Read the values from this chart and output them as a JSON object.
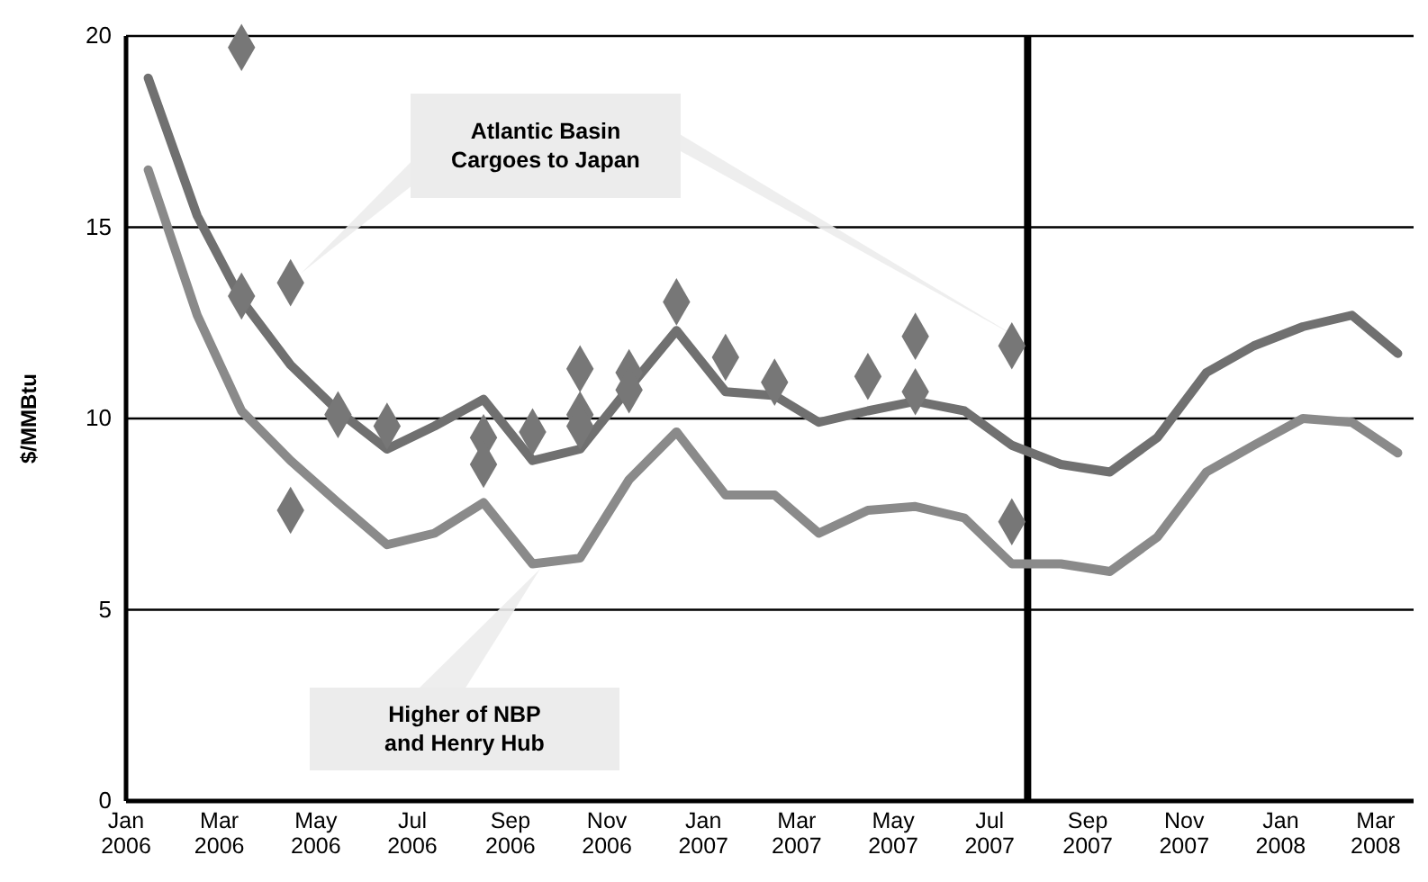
{
  "chart_data": {
    "type": "line",
    "ylabel": "$/MMBtu",
    "xlim": [
      "2006-01-01",
      "2008-03-25"
    ],
    "ylim": [
      0,
      20
    ],
    "yticks": [
      0,
      5,
      10,
      15,
      20
    ],
    "xticks": [
      {
        "value": "2006-01-01",
        "label": "Jan 2006"
      },
      {
        "value": "2006-03-01",
        "label": "Mar 2006"
      },
      {
        "value": "2006-05-01",
        "label": "May 2006"
      },
      {
        "value": "2006-07-01",
        "label": "Jul 2006"
      },
      {
        "value": "2006-09-01",
        "label": "Sep 2006"
      },
      {
        "value": "2006-11-01",
        "label": "Nov 2006"
      },
      {
        "value": "2007-01-01",
        "label": "Jan 2007"
      },
      {
        "value": "2007-03-01",
        "label": "Mar 2007"
      },
      {
        "value": "2007-05-01",
        "label": "May 2007"
      },
      {
        "value": "2007-07-01",
        "label": "Jul 2007"
      },
      {
        "value": "2007-09-01",
        "label": "Sep 2007"
      },
      {
        "value": "2007-11-01",
        "label": "Nov 2007"
      },
      {
        "value": "2008-01-01",
        "label": "Jan 2008"
      },
      {
        "value": "2008-03-01",
        "label": "Mar 2008"
      }
    ],
    "grid": "y",
    "annotations": [
      "Atlantic Basin Cargoes to Japan",
      "Higher of NBP and Henry Hub"
    ],
    "ref_lines": [
      {
        "axis": "x",
        "value": "2007-07-25",
        "color": "#000000"
      }
    ],
    "series": [
      {
        "color": "#707070",
        "marker": "none",
        "x": [
          "2006-01-15",
          "2006-02-15",
          "2006-03-15",
          "2006-04-15",
          "2006-05-15",
          "2006-06-15",
          "2006-07-15",
          "2006-08-15",
          "2006-09-15",
          "2006-10-15",
          "2006-11-15",
          "2006-12-15",
          "2007-01-15",
          "2007-02-15",
          "2007-03-15",
          "2007-04-15",
          "2007-05-15",
          "2007-06-15",
          "2007-07-15",
          "2007-08-15",
          "2007-09-15",
          "2007-10-15",
          "2007-11-15",
          "2007-12-15",
          "2008-01-15",
          "2008-02-15",
          "2008-03-15"
        ],
        "values": [
          18.9,
          15.3,
          13.1,
          11.4,
          10.2,
          9.2,
          9.8,
          10.5,
          8.9,
          9.2,
          10.8,
          12.3,
          10.7,
          10.6,
          9.9,
          10.2,
          10.45,
          10.2,
          9.3,
          8.8,
          8.6,
          9.5,
          11.2,
          11.9,
          12.4,
          12.7,
          11.7
        ]
      },
      {
        "color": "#8a8a8a",
        "marker": "none",
        "x": [
          "2006-01-15",
          "2006-02-15",
          "2006-03-15",
          "2006-04-15",
          "2006-05-15",
          "2006-06-15",
          "2006-07-15",
          "2006-08-15",
          "2006-09-15",
          "2006-10-15",
          "2006-11-15",
          "2006-12-15",
          "2007-01-15",
          "2007-02-15",
          "2007-03-15",
          "2007-04-15",
          "2007-05-15",
          "2007-06-15",
          "2007-07-15",
          "2007-08-15",
          "2007-09-15",
          "2007-10-15",
          "2007-11-15",
          "2007-12-15",
          "2008-01-15",
          "2008-02-15",
          "2008-03-15"
        ],
        "values": [
          16.5,
          12.7,
          10.2,
          8.9,
          7.8,
          6.7,
          7.0,
          7.8,
          6.2,
          6.35,
          8.4,
          9.65,
          8.0,
          8.0,
          7.0,
          7.6,
          7.7,
          7.4,
          6.2,
          6.2,
          6.0,
          6.9,
          8.6,
          9.3,
          10.0,
          9.9,
          9.1
        ]
      },
      {
        "type": "scatter",
        "color": "#777777",
        "marker": "diamond",
        "x": [
          "2006-03-15",
          "2006-03-15",
          "2006-04-15",
          "2006-04-15",
          "2006-05-15",
          "2006-06-15",
          "2006-08-15",
          "2006-08-15",
          "2006-09-15",
          "2006-10-15",
          "2006-10-15",
          "2006-10-15",
          "2006-11-15",
          "2006-11-15",
          "2006-12-15",
          "2007-01-15",
          "2007-02-15",
          "2007-04-15",
          "2007-05-15",
          "2007-05-15",
          "2007-07-15",
          "2007-07-15"
        ],
        "values": [
          19.7,
          13.2,
          13.55,
          7.6,
          10.1,
          9.8,
          9.5,
          8.8,
          9.65,
          11.3,
          10.1,
          9.8,
          11.2,
          10.75,
          13.05,
          11.6,
          10.95,
          11.1,
          12.15,
          10.7,
          11.9,
          7.3
        ]
      }
    ]
  }
}
